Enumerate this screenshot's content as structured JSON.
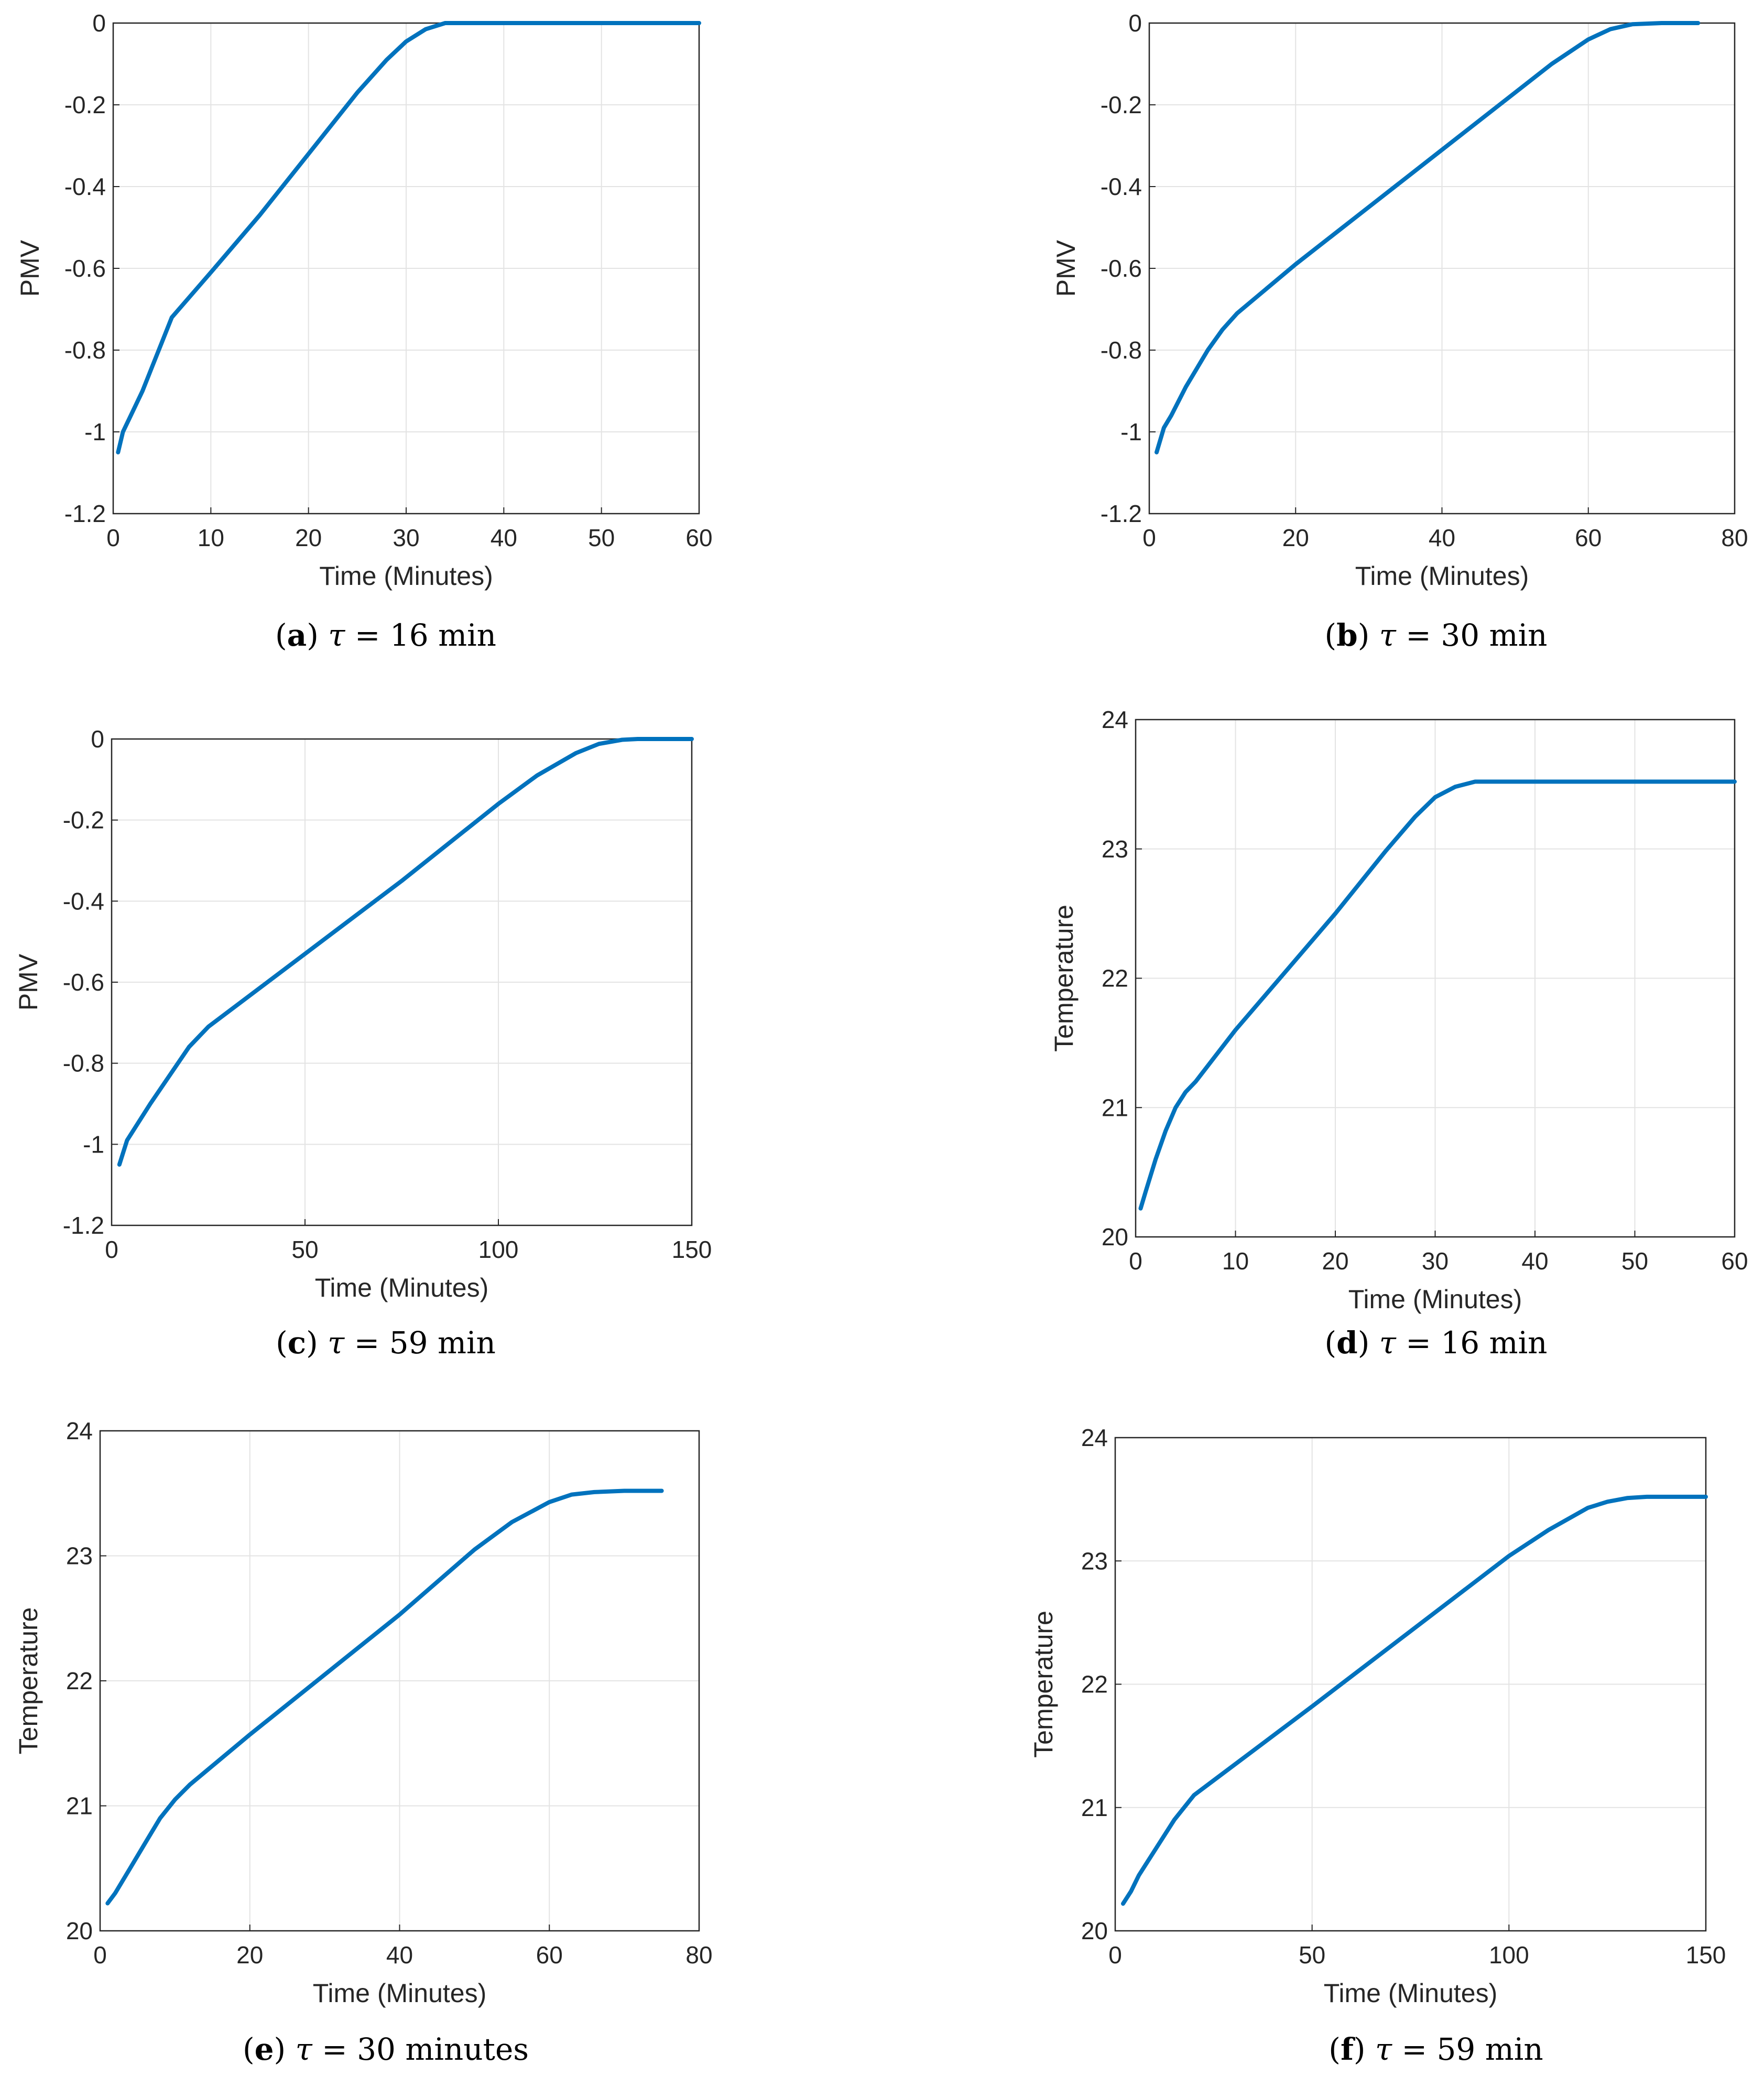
{
  "chart_data": [
    {
      "id": "a",
      "type": "line",
      "xlabel": "Time (Minutes)",
      "ylabel": "PMV",
      "xlim": [
        0,
        60
      ],
      "ylim": [
        -1.2,
        0
      ],
      "xticks": [
        "0",
        "10",
        "20",
        "30",
        "40",
        "50",
        "60"
      ],
      "yticks": [
        "-1.2",
        "-1",
        "-0.8",
        "-0.6",
        "-0.4",
        "-0.2",
        "0"
      ],
      "grid": true,
      "series": [
        {
          "name": "PMV",
          "color": "#0072BD",
          "x": [
            0.5,
            1,
            2,
            3,
            4,
            5,
            6,
            10,
            15,
            20,
            25,
            28,
            30,
            32,
            34,
            36,
            40,
            50,
            60
          ],
          "y": [
            -1.05,
            -1.0,
            -0.95,
            -0.9,
            -0.84,
            -0.78,
            -0.72,
            -0.61,
            -0.47,
            -0.32,
            -0.17,
            -0.09,
            -0.045,
            -0.015,
            0,
            0,
            0,
            0,
            0
          ]
        }
      ],
      "caption": {
        "letter": "a",
        "symbol": "τ",
        "text": " = 16 min"
      }
    },
    {
      "id": "b",
      "type": "line",
      "xlabel": "Time (Minutes)",
      "ylabel": "PMV",
      "xlim": [
        0,
        80
      ],
      "ylim": [
        -1.2,
        0
      ],
      "xticks": [
        "0",
        "20",
        "40",
        "60",
        "80"
      ],
      "yticks": [
        "-1.2",
        "-1",
        "-0.8",
        "-0.6",
        "-0.4",
        "-0.2",
        "0"
      ],
      "grid": true,
      "series": [
        {
          "name": "PMV",
          "color": "#0072BD",
          "x": [
            1,
            2,
            3,
            5,
            8,
            10,
            12,
            20,
            30,
            40,
            50,
            55,
            60,
            63,
            66,
            70,
            75
          ],
          "y": [
            -1.05,
            -0.99,
            -0.96,
            -0.89,
            -0.8,
            -0.75,
            -0.71,
            -0.59,
            -0.45,
            -0.31,
            -0.17,
            -0.1,
            -0.04,
            -0.015,
            -0.003,
            0,
            0
          ]
        }
      ],
      "caption": {
        "letter": "b",
        "symbol": "τ",
        "text": " = 30 min"
      }
    },
    {
      "id": "c",
      "type": "line",
      "xlabel": "Time (Minutes)",
      "ylabel": "PMV",
      "xlim": [
        0,
        150
      ],
      "ylim": [
        -1.2,
        0
      ],
      "xticks": [
        "0",
        "50",
        "100",
        "150"
      ],
      "yticks": [
        "-1.2",
        "-1",
        "-0.8",
        "-0.6",
        "-0.4",
        "-0.2",
        "0"
      ],
      "grid": true,
      "series": [
        {
          "name": "PMV",
          "color": "#0072BD",
          "x": [
            2,
            4,
            6,
            10,
            15,
            20,
            25,
            50,
            75,
            100,
            110,
            120,
            126,
            132,
            136,
            140,
            145,
            150
          ],
          "y": [
            -1.05,
            -0.99,
            -0.96,
            -0.9,
            -0.83,
            -0.76,
            -0.71,
            -0.53,
            -0.35,
            -0.16,
            -0.09,
            -0.035,
            -0.012,
            -0.002,
            0,
            0,
            0,
            0
          ]
        }
      ],
      "caption": {
        "letter": "c",
        "symbol": "τ",
        "text": " = 59 min"
      }
    },
    {
      "id": "d",
      "type": "line",
      "xlabel": "Time (Minutes)",
      "ylabel": "Temperature",
      "xlim": [
        0,
        60
      ],
      "ylim": [
        20,
        24
      ],
      "xticks": [
        "0",
        "10",
        "20",
        "30",
        "40",
        "50",
        "60"
      ],
      "yticks": [
        "20",
        "21",
        "22",
        "23",
        "24"
      ],
      "grid": true,
      "series": [
        {
          "name": "Temperature",
          "color": "#0072BD",
          "x": [
            0.5,
            1,
            2,
            3,
            4,
            5,
            6,
            10,
            15,
            20,
            25,
            28,
            30,
            32,
            34,
            36,
            40,
            50,
            60
          ],
          "y": [
            20.22,
            20.35,
            20.6,
            20.82,
            21.0,
            21.12,
            21.2,
            21.6,
            22.05,
            22.5,
            22.98,
            23.25,
            23.4,
            23.48,
            23.52,
            23.52,
            23.52,
            23.52,
            23.52
          ]
        }
      ],
      "caption": {
        "letter": "d",
        "symbol": "τ",
        "text": " = 16 min"
      }
    },
    {
      "id": "e",
      "type": "line",
      "xlabel": "Time (Minutes)",
      "ylabel": "Temperature",
      "xlim": [
        0,
        80
      ],
      "ylim": [
        20,
        24
      ],
      "xticks": [
        "0",
        "20",
        "40",
        "60",
        "80"
      ],
      "yticks": [
        "20",
        "21",
        "22",
        "23",
        "24"
      ],
      "grid": true,
      "series": [
        {
          "name": "Temperature",
          "color": "#0072BD",
          "x": [
            1,
            2,
            4,
            6,
            8,
            10,
            12,
            20,
            30,
            40,
            50,
            55,
            60,
            63,
            66,
            70,
            75
          ],
          "y": [
            20.22,
            20.3,
            20.5,
            20.7,
            20.9,
            21.05,
            21.17,
            21.57,
            22.05,
            22.53,
            23.05,
            23.27,
            23.43,
            23.49,
            23.51,
            23.52,
            23.52
          ]
        }
      ],
      "caption": {
        "letter": "e",
        "symbol": "τ",
        "text": " = 30 minutes"
      }
    },
    {
      "id": "f",
      "type": "line",
      "xlabel": "Time (Minutes)",
      "ylabel": "Temperature",
      "xlim": [
        0,
        150
      ],
      "ylim": [
        20,
        24
      ],
      "xticks": [
        "0",
        "50",
        "100",
        "150"
      ],
      "yticks": [
        "20",
        "21",
        "22",
        "23",
        "24"
      ],
      "grid": true,
      "series": [
        {
          "name": "Temperature",
          "color": "#0072BD",
          "x": [
            2,
            4,
            6,
            10,
            15,
            20,
            25,
            50,
            75,
            100,
            110,
            120,
            125,
            130,
            135,
            140,
            150
          ],
          "y": [
            20.22,
            20.32,
            20.45,
            20.65,
            20.9,
            21.1,
            21.22,
            21.82,
            22.43,
            23.04,
            23.25,
            23.43,
            23.48,
            23.51,
            23.52,
            23.52,
            23.52
          ]
        }
      ],
      "caption": {
        "letter": "f",
        "symbol": "τ",
        "text": " = 59 min"
      }
    }
  ]
}
